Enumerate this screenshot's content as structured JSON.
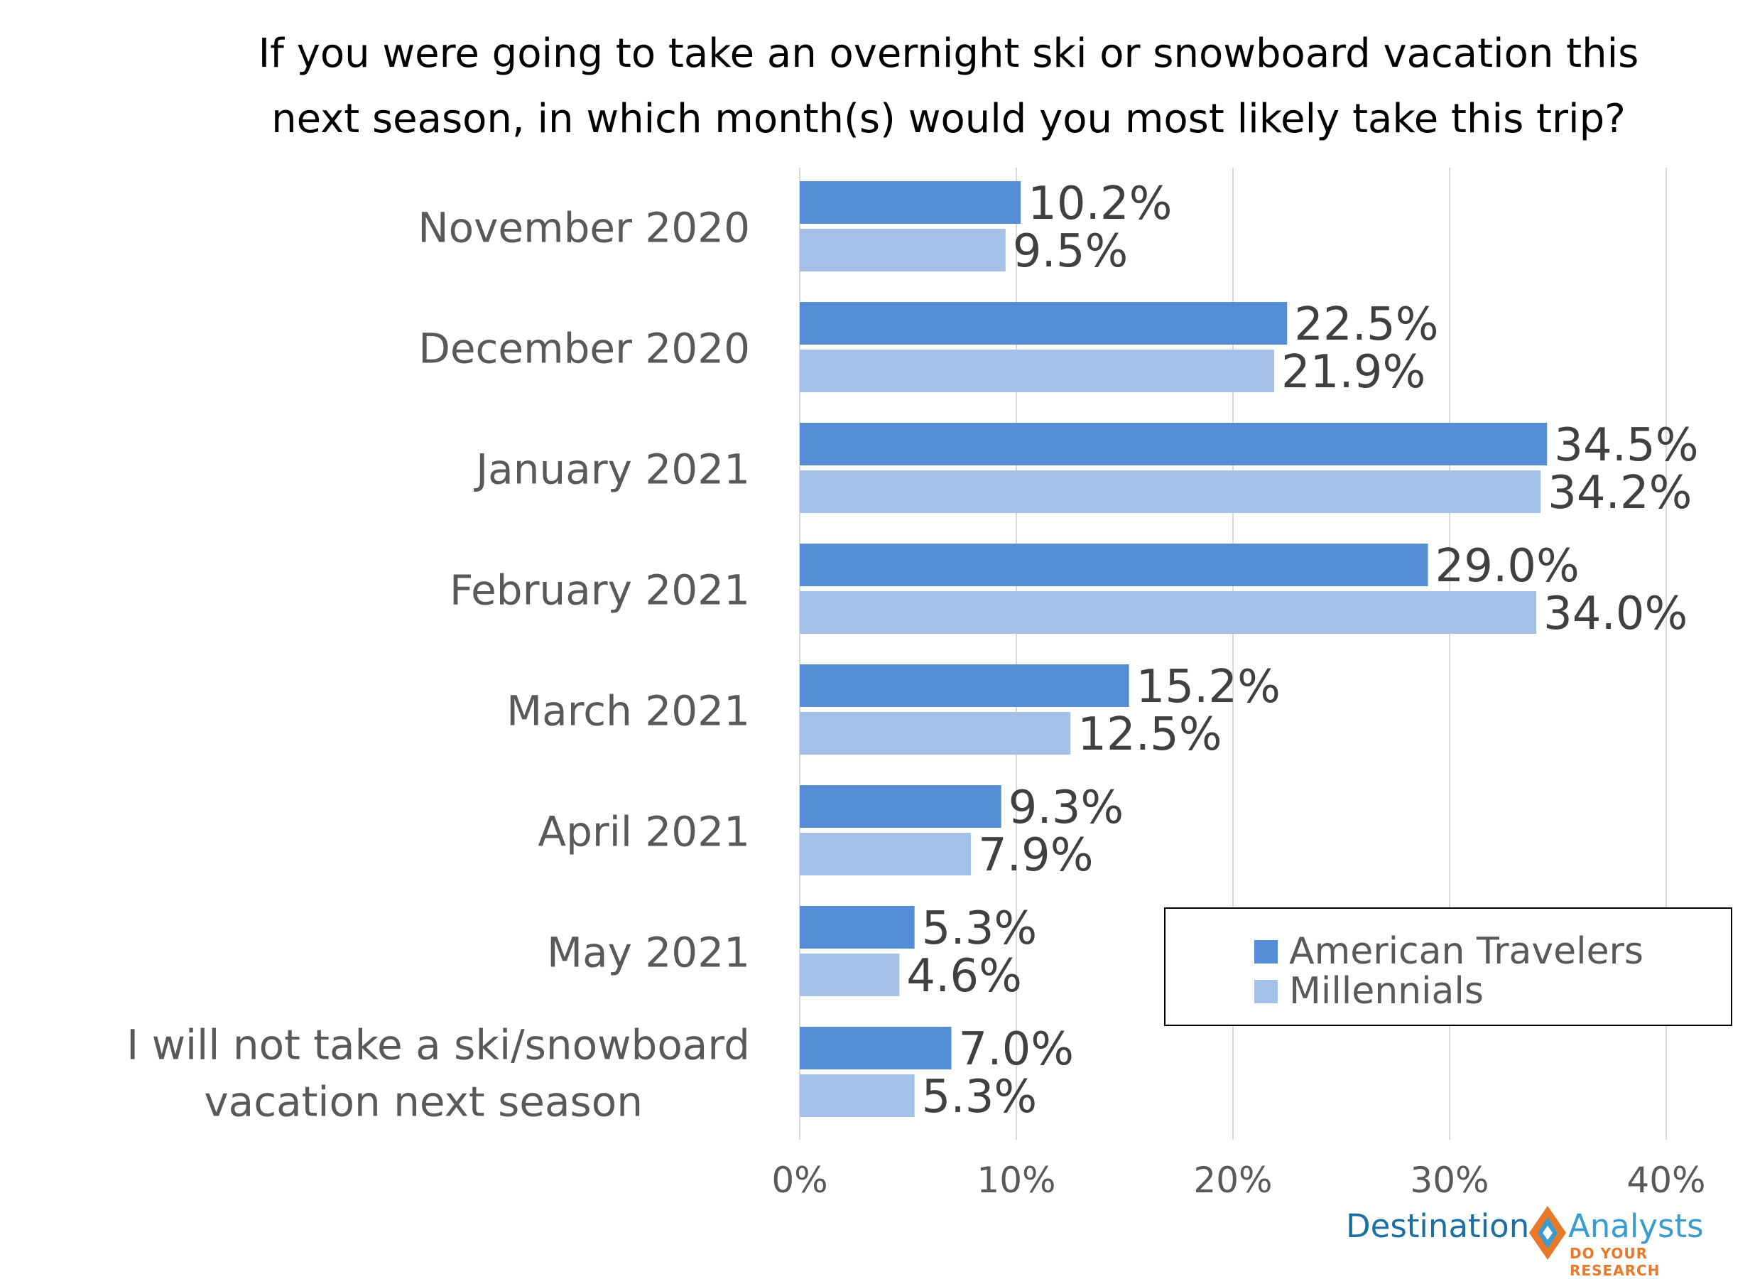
{
  "colors": {
    "american_travelers": "#558ed5",
    "millennials": "#a4c2e8",
    "gridline": "#d9d9d9",
    "text": "#404040"
  },
  "chart_data": {
    "type": "bar",
    "orientation": "horizontal",
    "title": "If you were going to take an overnight ski or snowboard vacation this next season, in which month(s) would you most likely take this trip?",
    "title_lines": [
      "If you were going to take an overnight ski or snowboard vacation this",
      "next season, in which month(s) would you most likely take this trip?"
    ],
    "categories": [
      "November 2020",
      "December 2020",
      "January 2021",
      "February 2021",
      "March 2021",
      "April 2021",
      "May 2021",
      "I will not take a ski/snowboard vacation next season"
    ],
    "category_label_lines": [
      [
        "November 2020"
      ],
      [
        "December 2020"
      ],
      [
        "January 2021"
      ],
      [
        "February 2021"
      ],
      [
        "March 2021"
      ],
      [
        "April 2021"
      ],
      [
        "May 2021"
      ],
      [
        "I will not take a ski/snowboard",
        "vacation next season"
      ]
    ],
    "series": [
      {
        "name": "American Travelers",
        "values": [
          10.2,
          22.5,
          34.5,
          29.0,
          15.2,
          9.3,
          5.3,
          7.0
        ],
        "labels": [
          "10.2%",
          "22.5%",
          "34.5%",
          "29.0%",
          "15.2%",
          "9.3%",
          "5.3%",
          "7.0%"
        ]
      },
      {
        "name": "Millennials",
        "values": [
          9.5,
          21.9,
          34.2,
          34.0,
          12.5,
          7.9,
          4.6,
          5.3
        ],
        "labels": [
          "9.5%",
          "21.9%",
          "34.2%",
          "34.0%",
          "12.5%",
          "7.9%",
          "4.6%",
          "5.3%"
        ]
      }
    ],
    "xlim": [
      0,
      40
    ],
    "xticks": [
      0,
      10,
      20,
      30,
      40
    ],
    "xtick_labels": [
      "0%",
      "10%",
      "20%",
      "30%",
      "40%"
    ],
    "grid": true,
    "legend_position": "bottom-right"
  },
  "legend": {
    "items": [
      {
        "label": "American Travelers"
      },
      {
        "label": "Millennials"
      }
    ]
  },
  "logo": {
    "word_left": "Destination",
    "word_right": "Analysts",
    "tagline": "DO YOUR RESEARCH"
  }
}
